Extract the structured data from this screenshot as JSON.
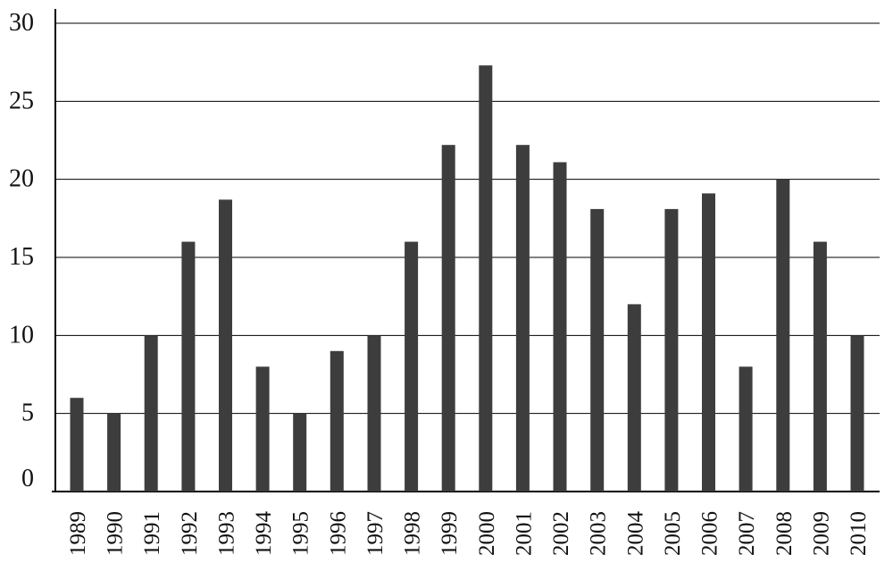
{
  "chart_data": {
    "type": "bar",
    "title": "",
    "xlabel": "",
    "ylabel": "",
    "ylim": [
      0,
      30
    ],
    "yticks": [
      0,
      5,
      10,
      15,
      20,
      25,
      30
    ],
    "grid": "horizontal",
    "legend": "none",
    "categories": [
      "1989",
      "1990",
      "1991",
      "1992",
      "1993",
      "1994",
      "1995",
      "1996",
      "1997",
      "1998",
      "1999",
      "2000",
      "2001",
      "2002",
      "2003",
      "2004",
      "2005",
      "2006",
      "2007",
      "2008",
      "2009",
      "2010"
    ],
    "series": [
      {
        "values": [
          6,
          5,
          10,
          16,
          18.7,
          8,
          5,
          9,
          10,
          16,
          22.2,
          27.3,
          22.2,
          21.1,
          18.1,
          12,
          18.1,
          19.1,
          8,
          20,
          16,
          10
        ],
        "color": "#3d3d3d"
      }
    ],
    "colors": {
      "bar": "#3d3d3d",
      "grid": "#000000",
      "axis": "#000000"
    }
  }
}
